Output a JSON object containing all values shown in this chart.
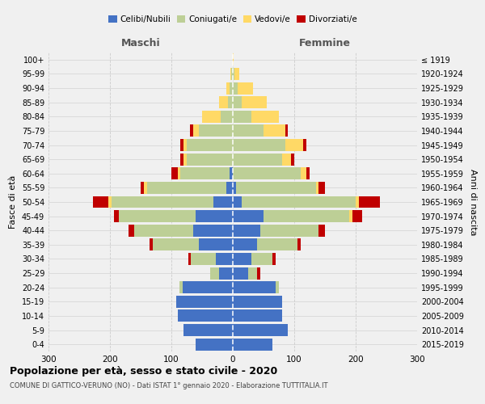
{
  "age_groups": [
    "0-4",
    "5-9",
    "10-14",
    "15-19",
    "20-24",
    "25-29",
    "30-34",
    "35-39",
    "40-44",
    "45-49",
    "50-54",
    "55-59",
    "60-64",
    "65-69",
    "70-74",
    "75-79",
    "80-84",
    "85-89",
    "90-94",
    "95-99",
    "100+"
  ],
  "birth_years": [
    "2015-2019",
    "2010-2014",
    "2005-2009",
    "2000-2004",
    "1995-1999",
    "1990-1994",
    "1985-1989",
    "1980-1984",
    "1975-1979",
    "1970-1974",
    "1965-1969",
    "1960-1964",
    "1955-1959",
    "1950-1954",
    "1945-1949",
    "1940-1944",
    "1935-1939",
    "1930-1934",
    "1925-1929",
    "1920-1924",
    "≤ 1919"
  ],
  "maschi": {
    "celibi": [
      60,
      80,
      90,
      92,
      82,
      22,
      28,
      55,
      65,
      60,
      32,
      10,
      5,
      0,
      0,
      0,
      0,
      0,
      0,
      0,
      0
    ],
    "coniugati": [
      0,
      0,
      0,
      0,
      5,
      15,
      40,
      75,
      95,
      125,
      165,
      130,
      80,
      75,
      75,
      55,
      20,
      8,
      5,
      2,
      0
    ],
    "vedovi": [
      0,
      0,
      0,
      0,
      0,
      0,
      0,
      0,
      0,
      0,
      5,
      5,
      5,
      5,
      5,
      10,
      30,
      15,
      5,
      2,
      0
    ],
    "divorziati": [
      0,
      0,
      0,
      0,
      0,
      0,
      5,
      5,
      10,
      8,
      25,
      5,
      10,
      5,
      5,
      5,
      0,
      0,
      0,
      0,
      0
    ]
  },
  "femmine": {
    "nubili": [
      65,
      90,
      80,
      80,
      70,
      25,
      30,
      40,
      45,
      50,
      15,
      5,
      0,
      0,
      0,
      0,
      0,
      0,
      0,
      0,
      0
    ],
    "coniugate": [
      0,
      0,
      0,
      0,
      5,
      15,
      35,
      65,
      95,
      140,
      185,
      130,
      110,
      80,
      85,
      50,
      30,
      15,
      8,
      3,
      0
    ],
    "vedove": [
      0,
      0,
      0,
      0,
      0,
      0,
      0,
      0,
      0,
      5,
      5,
      5,
      10,
      15,
      30,
      35,
      45,
      40,
      25,
      8,
      1
    ],
    "divorziate": [
      0,
      0,
      0,
      0,
      0,
      5,
      5,
      5,
      10,
      15,
      35,
      10,
      5,
      5,
      5,
      5,
      0,
      0,
      0,
      0,
      0
    ]
  },
  "colors": {
    "celibi": "#4472C4",
    "coniugati": "#BDCF96",
    "vedovi": "#FFD966",
    "divorziati": "#C00000"
  },
  "xlim": 300,
  "title": "Popolazione per età, sesso e stato civile - 2020",
  "subtitle": "COMUNE DI GATTICO-VERUNO (NO) - Dati ISTAT 1° gennaio 2020 - Elaborazione TUTTITALIA.IT",
  "ylabel_left": "Fasce di età",
  "ylabel_right": "Anni di nascita",
  "xlabel_maschi": "Maschi",
  "xlabel_femmine": "Femmine",
  "bg_color": "#f0f0f0",
  "grid_color": "#cccccc"
}
